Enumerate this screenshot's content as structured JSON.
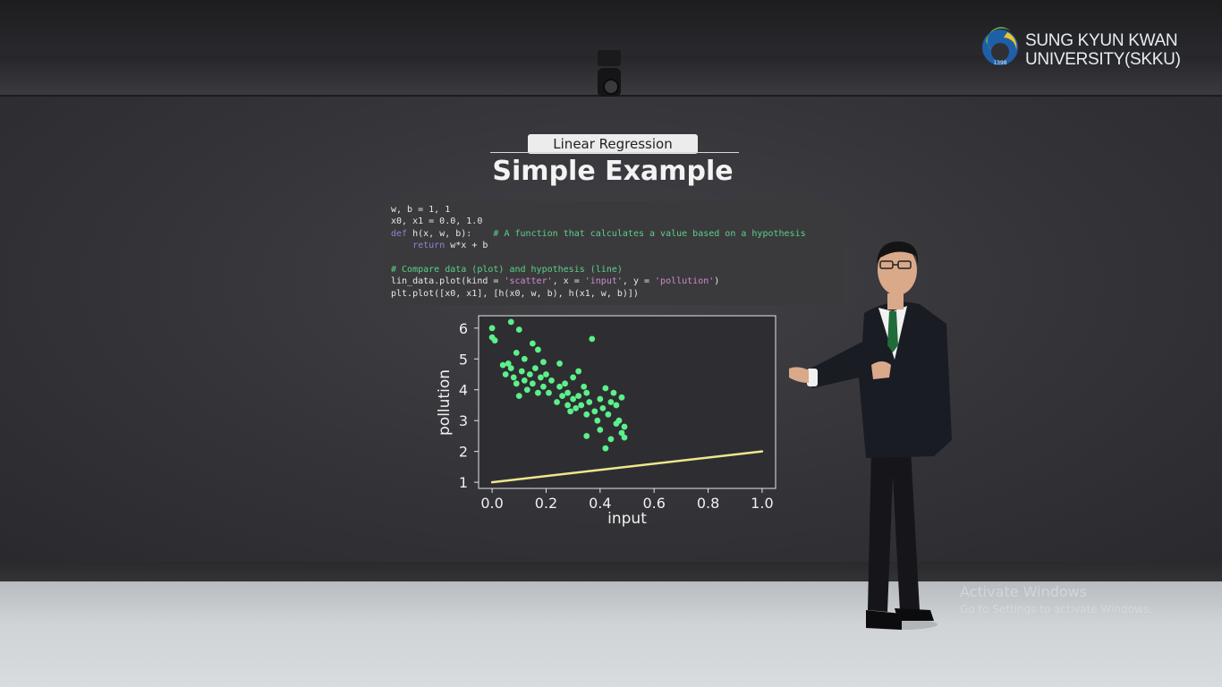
{
  "logo": {
    "seal_text": "1398",
    "line1": "SUNG KYUN KWAN",
    "line2": "UNIVERSITY(SKKU)",
    "colors": {
      "green": "#6fbf3c",
      "blue": "#1f5fa8",
      "yellow": "#e8c62a"
    }
  },
  "slide": {
    "tag": "Linear Regression",
    "title": "Simple Example"
  },
  "code": {
    "lines": [
      "w, b = 1, 1",
      "x0, x1 = 0.0, 1.0",
      "h(x, w, b):",
      "w*x + b",
      "",
      "# Compare data (plot) and hypothesis (line)",
      "lin_data.plot(kind = ",
      "plt.plot([x0, x1], [h(x0, w, b), h(x1, w, b)])"
    ],
    "def_kw": "def",
    "return_kw": "return",
    "comment_hypothesis": "# A function that calculates a value based on a hypothesis",
    "plot_kind": "'scatter'",
    "plot_x_lead": ", x = ",
    "plot_x": "'input'",
    "plot_y_lead": ", y = ",
    "plot_y": "'pollution'"
  },
  "chart_data": {
    "type": "scatter",
    "xlabel": "input",
    "ylabel": "pollution",
    "xlim": [
      -0.05,
      1.05
    ],
    "ylim": [
      0.8,
      6.4
    ],
    "xticks": [
      "0.0",
      "0.2",
      "0.4",
      "0.6",
      "0.8",
      "1.0"
    ],
    "yticks": [
      "1",
      "2",
      "3",
      "4",
      "5",
      "6"
    ],
    "series": [
      {
        "kind": "scatter",
        "color": "#5cf08a",
        "points": [
          [
            0.0,
            6.0
          ],
          [
            0.01,
            5.6
          ],
          [
            0.0,
            5.7
          ],
          [
            0.07,
            6.2
          ],
          [
            0.1,
            5.95
          ],
          [
            0.04,
            4.8
          ],
          [
            0.05,
            4.5
          ],
          [
            0.06,
            4.85
          ],
          [
            0.07,
            4.7
          ],
          [
            0.08,
            4.4
          ],
          [
            0.09,
            5.2
          ],
          [
            0.09,
            4.2
          ],
          [
            0.1,
            3.8
          ],
          [
            0.11,
            4.6
          ],
          [
            0.12,
            5.0
          ],
          [
            0.12,
            4.3
          ],
          [
            0.13,
            4.0
          ],
          [
            0.14,
            4.5
          ],
          [
            0.15,
            5.5
          ],
          [
            0.15,
            4.2
          ],
          [
            0.16,
            4.7
          ],
          [
            0.17,
            5.3
          ],
          [
            0.17,
            3.9
          ],
          [
            0.18,
            4.4
          ],
          [
            0.19,
            4.9
          ],
          [
            0.19,
            4.1
          ],
          [
            0.2,
            4.5
          ],
          [
            0.21,
            3.9
          ],
          [
            0.22,
            4.3
          ],
          [
            0.25,
            4.85
          ],
          [
            0.24,
            3.6
          ],
          [
            0.25,
            4.1
          ],
          [
            0.26,
            3.8
          ],
          [
            0.27,
            4.2
          ],
          [
            0.28,
            3.5
          ],
          [
            0.28,
            3.9
          ],
          [
            0.29,
            3.3
          ],
          [
            0.3,
            3.7
          ],
          [
            0.3,
            4.4
          ],
          [
            0.31,
            3.4
          ],
          [
            0.32,
            3.8
          ],
          [
            0.32,
            4.6
          ],
          [
            0.33,
            3.5
          ],
          [
            0.34,
            4.1
          ],
          [
            0.35,
            3.9
          ],
          [
            0.35,
            3.2
          ],
          [
            0.35,
            2.5
          ],
          [
            0.36,
            3.6
          ],
          [
            0.37,
            5.65
          ],
          [
            0.38,
            3.3
          ],
          [
            0.39,
            3.0
          ],
          [
            0.4,
            3.7
          ],
          [
            0.4,
            2.7
          ],
          [
            0.41,
            3.4
          ],
          [
            0.42,
            4.05
          ],
          [
            0.42,
            2.1
          ],
          [
            0.43,
            3.2
          ],
          [
            0.44,
            3.6
          ],
          [
            0.44,
            2.4
          ],
          [
            0.45,
            3.9
          ],
          [
            0.46,
            2.9
          ],
          [
            0.46,
            3.5
          ],
          [
            0.47,
            3.0
          ],
          [
            0.48,
            2.6
          ],
          [
            0.48,
            3.75
          ],
          [
            0.49,
            2.8
          ],
          [
            0.49,
            2.45
          ]
        ]
      },
      {
        "kind": "line",
        "color": "#f0e68c",
        "points": [
          [
            0.0,
            1.0
          ],
          [
            1.0,
            2.0
          ]
        ]
      }
    ]
  },
  "watermark": {
    "line1": "Activate Windows",
    "line2": "Go to Settings to activate Windows."
  }
}
